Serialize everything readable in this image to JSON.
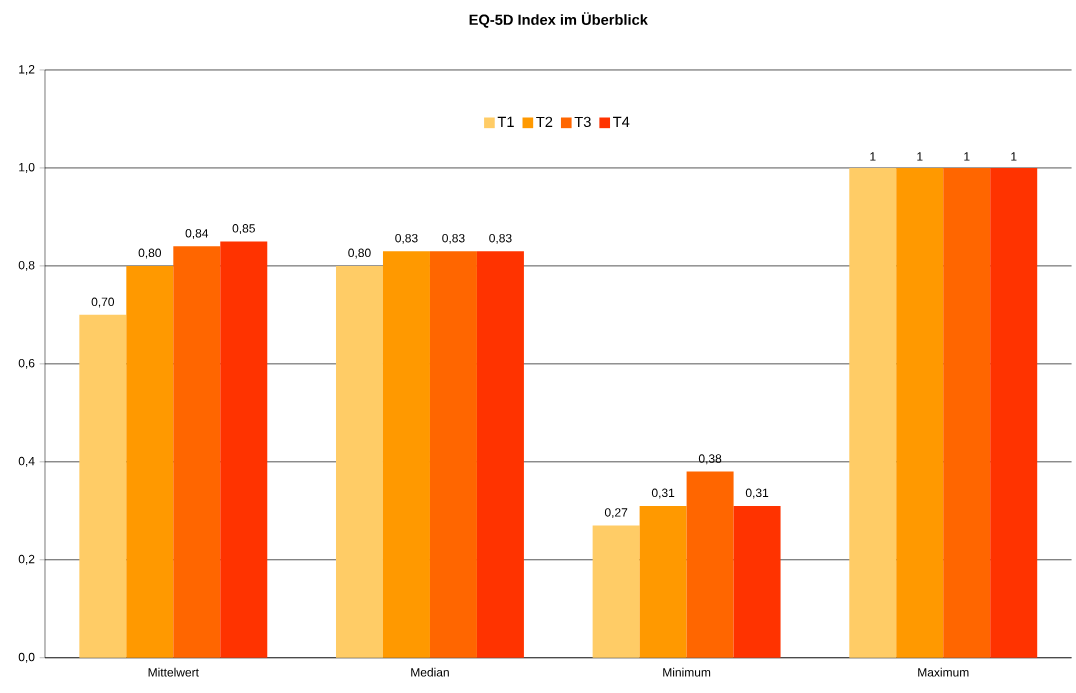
{
  "chart_data": {
    "type": "bar",
    "title": "EQ-5D Index im Überblick",
    "categories": [
      "Mittelwert",
      "Median",
      "Minimum",
      "Maximum"
    ],
    "series": [
      {
        "name": "T1",
        "color": "#ffcc66",
        "values": [
          0.7,
          0.8,
          0.27,
          1
        ],
        "value_labels": [
          "0,70",
          "0,80",
          "0,27",
          "1"
        ]
      },
      {
        "name": "T2",
        "color": "#ff9900",
        "values": [
          0.8,
          0.83,
          0.31,
          1
        ],
        "value_labels": [
          "0,80",
          "0,83",
          "0,31",
          "1"
        ]
      },
      {
        "name": "T3",
        "color": "#ff6600",
        "values": [
          0.84,
          0.83,
          0.38,
          1
        ],
        "value_labels": [
          "0,84",
          "0,83",
          "0,38",
          "1"
        ]
      },
      {
        "name": "T4",
        "color": "#ff3300",
        "values": [
          0.85,
          0.83,
          0.31,
          1
        ],
        "value_labels": [
          "0,85",
          "0,83",
          "0,31",
          "1"
        ]
      }
    ],
    "ylim": [
      0,
      1.2
    ],
    "yticks": [
      {
        "value": 0,
        "label": "0,0"
      },
      {
        "value": 0.2,
        "label": "0,2"
      },
      {
        "value": 0.4,
        "label": "0,4"
      },
      {
        "value": 0.6,
        "label": "0,6"
      },
      {
        "value": 0.8,
        "label": "0,8"
      },
      {
        "value": 1.0,
        "label": "1,0"
      },
      {
        "value": 1.2,
        "label": "1,2"
      }
    ],
    "grid": "y",
    "legend": "top"
  }
}
